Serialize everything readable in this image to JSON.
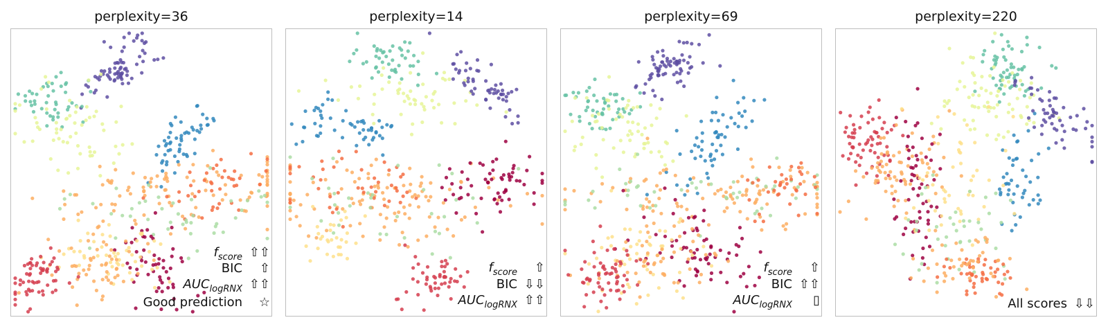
{
  "chart_data": [
    {
      "type": "scatter",
      "title": "perplexity=36",
      "grid": false,
      "clusters": [
        {
          "color": "#5e4fa2",
          "cx": 0.42,
          "cy": 0.14,
          "sx": 0.08,
          "sy": 0.04,
          "n": 70,
          "angle": -35
        },
        {
          "color": "#66c2a5",
          "cx": 0.15,
          "cy": 0.26,
          "sx": 0.06,
          "sy": 0.05,
          "n": 45,
          "angle": 0
        },
        {
          "color": "#e6f598",
          "cx": 0.22,
          "cy": 0.34,
          "sx": 0.12,
          "sy": 0.07,
          "n": 60,
          "angle": 20
        },
        {
          "color": "#3288bd",
          "cx": 0.66,
          "cy": 0.38,
          "sx": 0.1,
          "sy": 0.03,
          "n": 55,
          "angle": -50
        },
        {
          "color": "#fdae61",
          "cx": 0.68,
          "cy": 0.57,
          "sx": 0.28,
          "sy": 0.06,
          "n": 100,
          "angle": 0
        },
        {
          "color": "#f46d43",
          "cx": 0.8,
          "cy": 0.55,
          "sx": 0.1,
          "sy": 0.05,
          "n": 40,
          "angle": -20
        },
        {
          "color": "#abdda4",
          "cx": 0.6,
          "cy": 0.62,
          "sx": 0.25,
          "sy": 0.07,
          "n": 45,
          "angle": 0
        },
        {
          "color": "#9e0142",
          "cx": 0.55,
          "cy": 0.82,
          "sx": 0.08,
          "sy": 0.07,
          "n": 55,
          "angle": 30
        },
        {
          "color": "#fee08b",
          "cx": 0.4,
          "cy": 0.8,
          "sx": 0.12,
          "sy": 0.06,
          "n": 50,
          "angle": 0
        },
        {
          "color": "#fdae61",
          "cx": 0.32,
          "cy": 0.84,
          "sx": 0.1,
          "sy": 0.06,
          "n": 50,
          "angle": 0
        },
        {
          "color": "#d53e4f",
          "cx": 0.1,
          "cy": 0.87,
          "sx": 0.06,
          "sy": 0.05,
          "n": 60,
          "angle": 0
        }
      ],
      "annotations": [
        {
          "label": "f",
          "sub": "score",
          "symbol": "⇧⇧"
        },
        {
          "label": "BIC",
          "sub": "",
          "symbol": "⇧"
        },
        {
          "label": "AUC",
          "sub": "logRNX",
          "symbol": "⇧⇧"
        },
        {
          "label": "Good prediction",
          "sub": "",
          "symbol": "☆"
        }
      ]
    },
    {
      "type": "scatter",
      "title": "perplexity=14",
      "grid": false,
      "clusters": [
        {
          "color": "#66c2a5",
          "cx": 0.4,
          "cy": 0.11,
          "sx": 0.07,
          "sy": 0.04,
          "n": 45,
          "angle": 0
        },
        {
          "color": "#e6f598",
          "cx": 0.48,
          "cy": 0.24,
          "sx": 0.13,
          "sy": 0.06,
          "n": 55,
          "angle": 0
        },
        {
          "color": "#5e4fa2",
          "cx": 0.77,
          "cy": 0.2,
          "sx": 0.1,
          "sy": 0.035,
          "n": 55,
          "angle": 35
        },
        {
          "color": "#3288bd",
          "cx": 0.12,
          "cy": 0.32,
          "sx": 0.05,
          "sy": 0.04,
          "n": 25,
          "angle": -30
        },
        {
          "color": "#3288bd",
          "cx": 0.31,
          "cy": 0.36,
          "sx": 0.06,
          "sy": 0.025,
          "n": 30,
          "angle": 10
        },
        {
          "color": "#fdae61",
          "cx": 0.35,
          "cy": 0.6,
          "sx": 0.28,
          "sy": 0.08,
          "n": 110,
          "angle": 0
        },
        {
          "color": "#f46d43",
          "cx": 0.25,
          "cy": 0.54,
          "sx": 0.18,
          "sy": 0.06,
          "n": 45,
          "angle": 0
        },
        {
          "color": "#abdda4",
          "cx": 0.4,
          "cy": 0.62,
          "sx": 0.25,
          "sy": 0.07,
          "n": 35,
          "angle": 0
        },
        {
          "color": "#9e0142",
          "cx": 0.8,
          "cy": 0.55,
          "sx": 0.1,
          "sy": 0.05,
          "n": 60,
          "angle": 0
        },
        {
          "color": "#fee08b",
          "cx": 0.15,
          "cy": 0.72,
          "sx": 0.06,
          "sy": 0.05,
          "n": 30,
          "angle": 0
        },
        {
          "color": "#d53e4f",
          "cx": 0.55,
          "cy": 0.88,
          "sx": 0.08,
          "sy": 0.04,
          "n": 50,
          "angle": 0
        }
      ],
      "annotations": [
        {
          "label": "f",
          "sub": "score",
          "symbol": "⇧"
        },
        {
          "label": "BIC",
          "sub": "",
          "symbol": "⇩⇩"
        },
        {
          "label": "AUC",
          "sub": "logRNX",
          "symbol": "⇧⇧"
        }
      ]
    },
    {
      "type": "scatter",
      "title": "perplexity=69",
      "grid": false,
      "clusters": [
        {
          "color": "#5e4fa2",
          "cx": 0.43,
          "cy": 0.13,
          "sx": 0.08,
          "sy": 0.04,
          "n": 70,
          "angle": -35
        },
        {
          "color": "#66c2a5",
          "cx": 0.15,
          "cy": 0.26,
          "sx": 0.07,
          "sy": 0.05,
          "n": 50,
          "angle": 0
        },
        {
          "color": "#e6f598",
          "cx": 0.24,
          "cy": 0.35,
          "sx": 0.11,
          "sy": 0.07,
          "n": 60,
          "angle": 20
        },
        {
          "color": "#3288bd",
          "cx": 0.58,
          "cy": 0.38,
          "sx": 0.12,
          "sy": 0.05,
          "n": 60,
          "angle": -45
        },
        {
          "color": "#fdae61",
          "cx": 0.62,
          "cy": 0.58,
          "sx": 0.28,
          "sy": 0.06,
          "n": 100,
          "angle": 0
        },
        {
          "color": "#abdda4",
          "cx": 0.55,
          "cy": 0.56,
          "sx": 0.3,
          "sy": 0.05,
          "n": 45,
          "angle": 0
        },
        {
          "color": "#f46d43",
          "cx": 0.85,
          "cy": 0.56,
          "sx": 0.08,
          "sy": 0.06,
          "n": 35,
          "angle": 0
        },
        {
          "color": "#9e0142",
          "cx": 0.52,
          "cy": 0.76,
          "sx": 0.13,
          "sy": 0.07,
          "n": 70,
          "angle": 25
        },
        {
          "color": "#fee08b",
          "cx": 0.3,
          "cy": 0.78,
          "sx": 0.12,
          "sy": 0.08,
          "n": 55,
          "angle": 0
        },
        {
          "color": "#fdae61",
          "cx": 0.35,
          "cy": 0.82,
          "sx": 0.14,
          "sy": 0.06,
          "n": 45,
          "angle": 0
        },
        {
          "color": "#d53e4f",
          "cx": 0.16,
          "cy": 0.86,
          "sx": 0.07,
          "sy": 0.05,
          "n": 60,
          "angle": 0
        }
      ],
      "annotations": [
        {
          "label": "f",
          "sub": "score",
          "symbol": "⇧"
        },
        {
          "label": "BIC",
          "sub": "",
          "symbol": "⇧⇧"
        },
        {
          "label": "AUC",
          "sub": "logRNX",
          "symbol": "▯"
        }
      ]
    },
    {
      "type": "scatter",
      "title": "perplexity=220",
      "grid": false,
      "clusters": [
        {
          "color": "#66c2a5",
          "cx": 0.65,
          "cy": 0.13,
          "sx": 0.07,
          "sy": 0.06,
          "n": 60,
          "angle": 0
        },
        {
          "color": "#e6f598",
          "cx": 0.6,
          "cy": 0.25,
          "sx": 0.1,
          "sy": 0.08,
          "n": 70,
          "angle": 0
        },
        {
          "color": "#5e4fa2",
          "cx": 0.85,
          "cy": 0.3,
          "sx": 0.1,
          "sy": 0.035,
          "n": 55,
          "angle": 35
        },
        {
          "color": "#3288bd",
          "cx": 0.7,
          "cy": 0.52,
          "sx": 0.04,
          "sy": 0.1,
          "n": 45,
          "angle": 10
        },
        {
          "color": "#d53e4f",
          "cx": 0.13,
          "cy": 0.4,
          "sx": 0.06,
          "sy": 0.07,
          "n": 65,
          "angle": 0
        },
        {
          "color": "#fdae61",
          "cx": 0.25,
          "cy": 0.48,
          "sx": 0.1,
          "sy": 0.1,
          "n": 70,
          "angle": 0
        },
        {
          "color": "#9e0142",
          "cx": 0.32,
          "cy": 0.56,
          "sx": 0.04,
          "sy": 0.13,
          "n": 60,
          "angle": 0
        },
        {
          "color": "#fee08b",
          "cx": 0.45,
          "cy": 0.5,
          "sx": 0.1,
          "sy": 0.12,
          "n": 50,
          "angle": 0
        },
        {
          "color": "#abdda4",
          "cx": 0.45,
          "cy": 0.72,
          "sx": 0.1,
          "sy": 0.1,
          "n": 40,
          "angle": 0
        },
        {
          "color": "#f46d43",
          "cx": 0.55,
          "cy": 0.85,
          "sx": 0.07,
          "sy": 0.04,
          "n": 45,
          "angle": 0
        },
        {
          "color": "#fdae61",
          "cx": 0.5,
          "cy": 0.8,
          "sx": 0.1,
          "sy": 0.05,
          "n": 40,
          "angle": 0
        }
      ],
      "annotations": [
        {
          "label": "All scores",
          "sub": "",
          "symbol": "⇩⇩"
        }
      ]
    }
  ]
}
